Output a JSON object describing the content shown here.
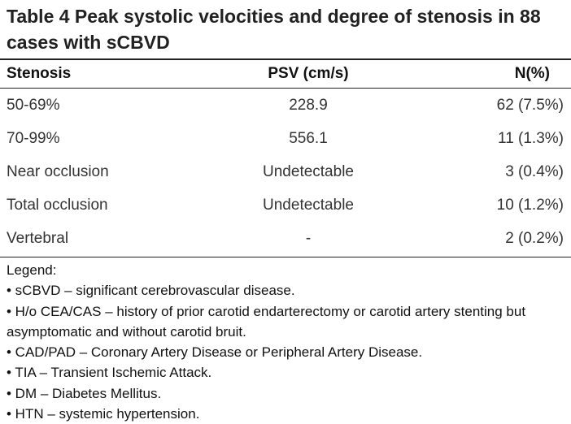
{
  "title": "Table 4 Peak systolic velocities and degree of stenosis in 88 cases with sCBVD",
  "table": {
    "header": [
      "Stenosis",
      "PSV (cm/s)",
      "N(%)"
    ],
    "rows": [
      [
        "50-69%",
        "228.9",
        "62 (7.5%)"
      ],
      [
        "70-99%",
        "556.1",
        "11 (1.3%)"
      ],
      [
        "Near occlusion",
        "Undetectable",
        "3 (0.4%)"
      ],
      [
        "Total occlusion",
        "Undetectable",
        "10 (1.2%)"
      ],
      [
        "Vertebral",
        "-",
        "2 (0.2%)"
      ]
    ]
  },
  "legend": {
    "heading": "Legend:",
    "items": [
      "• sCBVD – significant cerebrovascular disease.",
      "• H/o CEA/CAS – history of prior carotid endarterectomy or carotid artery stenting but asymptomatic and without carotid bruit.",
      "• CAD/PAD – Coronary Artery Disease or Peripheral Artery Disease.",
      "• TIA – Transient Ischemic Attack.",
      "• DM – Diabetes Mellitus.",
      "• HTN – systemic hypertension."
    ]
  }
}
